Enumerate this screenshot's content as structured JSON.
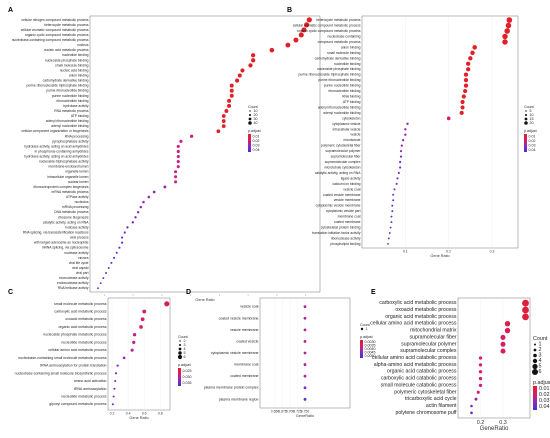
{
  "chart_data": [
    {
      "label": "A",
      "type": "scatter",
      "xlabel": "Gene Ratio",
      "ylabel": "",
      "xlim": [
        0.0,
        0.43
      ],
      "x_ticks": [
        "",
        "",
        "",
        "",
        "",
        "",
        "",
        ""
      ],
      "terms": [
        "cellular nitrogen compound metabolic process",
        "heterocycle metabolic process",
        "cellular aromatic compound metabolic process",
        "organic cyclic compound metabolic process",
        "nucleobase-containing compound metabolic process",
        "nucleus",
        "nucleic acid metabolic process",
        "nucleotide binding",
        "nucleoside phosphate binding",
        "small molecule binding",
        "nucleic acid binding",
        "anion binding",
        "carbohydrate derivative binding",
        "purine ribonucleoside triphosphate binding",
        "purine ribonucleotide binding",
        "purine nucleotide binding",
        "ribonucleotide binding",
        "hydrolase activity",
        "RNA metabolic process",
        "ATP binding",
        "adenyl ribonucleotide binding",
        "adenyl nucleotide binding",
        "cellular component organization or biogenesis",
        "RNA processing",
        "pyrophosphatase activity",
        "hydrolase activity, acting on acid anhydrides",
        "in phosphorus-containing anhydrides",
        "hydrolase activity, acting on acid anhydrides",
        "nucleoside-triphosphatase activity",
        "membrane-enclosed lumen",
        "organelle lumen",
        "intracellular organelle lumen",
        "nuclear lumen",
        "ribonucleoprotein complex biogenesis",
        "mRNA metabolic process",
        "ATPase activity",
        "nucleolus",
        "mRNA processing",
        "DNA metabolic process",
        "ribosome biogenesis",
        "catalytic activity, acting on RNA",
        "helicase activity",
        "RNA splicing, via transesterification reactions",
        "viral process",
        "with bulged adenosine as nucleophile",
        "mRNA splicing, via spliceosome",
        "nuclease activity",
        "viruses",
        "viral life cycle",
        "viral capsid",
        "viral part",
        "exonuclease activity",
        "endonuclease activity",
        "RNA helicase activity"
      ],
      "x": [
        0.41,
        0.405,
        0.4,
        0.395,
        0.385,
        0.37,
        0.34,
        0.305,
        0.305,
        0.3,
        0.285,
        0.28,
        0.275,
        0.265,
        0.265,
        0.265,
        0.26,
        0.26,
        0.255,
        0.25,
        0.25,
        0.25,
        0.24,
        0.19,
        0.17,
        0.165,
        0.165,
        0.165,
        0.165,
        0.165,
        0.16,
        0.16,
        0.16,
        0.14,
        0.12,
        0.11,
        0.1,
        0.095,
        0.09,
        0.085,
        0.08,
        0.07,
        0.065,
        0.06,
        0.06,
        0.055,
        0.05,
        0.045,
        0.04,
        0.035,
        0.03,
        0.025,
        0.02,
        0.015
      ],
      "padjust": [
        0.0,
        0.0,
        0.0,
        0.0,
        0.0,
        0.0,
        0.0,
        0.0,
        0.0,
        0.0,
        0.0,
        0.0,
        0.0,
        0.0,
        0.0,
        0.0,
        0.0,
        0.0,
        0.0,
        0.0,
        0.0,
        0.0,
        0.0,
        0.02,
        0.02,
        0.02,
        0.02,
        0.02,
        0.02,
        0.02,
        0.02,
        0.02,
        0.02,
        0.03,
        0.03,
        0.03,
        0.03,
        0.03,
        0.03,
        0.03,
        0.04,
        0.04,
        0.04,
        0.04,
        0.04,
        0.04,
        0.04,
        0.04,
        0.04,
        0.04,
        0.04,
        0.04,
        0.04,
        0.04
      ],
      "legend": {
        "count_title": "Count",
        "count_values": [
          10,
          20,
          30,
          40
        ],
        "padjust_title": "p.adjust",
        "padjust_labels": [
          "0.01",
          "0.02",
          "0.03",
          "0.04"
        ]
      }
    },
    {
      "label": "B",
      "type": "scatter",
      "xlabel": "Gene Ratio",
      "ylabel": "",
      "xlim": [
        0.0,
        0.36
      ],
      "x_ticks": [
        "0.1",
        "0.2",
        "0.3"
      ],
      "x_tick_values": [
        0.1,
        0.2,
        0.3
      ],
      "terms": [
        "heterocycle metabolic process",
        "cellular aromatic compound metabolic process",
        "organic cyclic compound metabolic process",
        "nucleobase-containing",
        "compound metabolic process",
        "anion binding",
        "small molecule binding",
        "carbohydrate derivative binding",
        "nucleotide binding",
        "nucleoside phosphate binding",
        "purine ribonucleoside triphosphate binding",
        "purine ribonucleotide binding",
        "purine nucleotide binding",
        "ribonucleotide binding",
        "RNA binding",
        "ATP binding",
        "adenyl ribonucleotide binding",
        "adenyl nucleotide binding",
        "cytoskeleton",
        "cytoplasmic vesicle",
        "intracellular vesicle",
        "vesicle",
        "microtubule",
        "polymeric cytoskeletal fiber",
        "supramolecular polymer",
        "supramolecular fiber",
        "supramolecular complex",
        "microtubule cytoskeleton",
        "catalytic activity, acting on RNA",
        "ligase activity",
        "calcium ion binding",
        "vesicle coat",
        "coated vesicle membrane",
        "vesicle membrane",
        "cytoplasmic vesicle membrane",
        "cytoplasmic vesicle part",
        "membrane coat",
        "coated membrane",
        "cytoskeletal protein binding",
        "translation initiation factor activity",
        "ribonuclease activity",
        "phospholipid binding"
      ],
      "x": [
        0.34,
        0.338,
        0.335,
        0.33,
        0.33,
        0.26,
        0.255,
        0.25,
        0.245,
        0.245,
        0.24,
        0.24,
        0.24,
        0.238,
        0.235,
        0.232,
        0.232,
        0.23,
        0.2,
        0.105,
        0.1,
        0.1,
        0.095,
        0.092,
        0.09,
        0.09,
        0.088,
        0.088,
        0.085,
        0.082,
        0.08,
        0.075,
        0.072,
        0.072,
        0.07,
        0.07,
        0.068,
        0.068,
        0.066,
        0.064,
        0.062,
        0.06
      ],
      "padjust": [
        0.0,
        0.0,
        0.0,
        0.0,
        0.0,
        0.0,
        0.0,
        0.0,
        0.0,
        0.0,
        0.0,
        0.0,
        0.0,
        0.0,
        0.0,
        0.0,
        0.0,
        0.0,
        0.015,
        0.03,
        0.03,
        0.03,
        0.03,
        0.03,
        0.03,
        0.035,
        0.035,
        0.035,
        0.035,
        0.04,
        0.04,
        0.04,
        0.04,
        0.04,
        0.04,
        0.04,
        0.04,
        0.04,
        0.04,
        0.04,
        0.04,
        0.04
      ],
      "legend": {
        "count_title": "Count",
        "count_values": [
          5,
          10,
          15,
          20
        ],
        "padjust_title": "p.adjust",
        "padjust_labels": [
          "0.01",
          "0.02",
          "0.03",
          "0.04"
        ]
      }
    },
    {
      "label": "C",
      "type": "scatter",
      "xlabel": "Gene Ratio",
      "ylabel": "",
      "xlim": [
        0.15,
        0.92
      ],
      "x_ticks": [
        "0.2",
        "0.4",
        "0.6",
        "0.8"
      ],
      "x_tick_values": [
        0.2,
        0.4,
        0.6,
        0.8
      ],
      "terms": [
        "small molecule metabolic process",
        "carboxylic acid metabolic process",
        "oxoacid metabolic process",
        "organic acid metabolic process",
        "nucleoside phosphate metabolic process",
        "nucleotide metabolic process",
        "cellular amino acid metabolic process",
        "nucleobase-containing small molecule metabolic process",
        "tRNA aminoacylation for protein translation",
        "nucleobase-containing small molecule biosynthetic process",
        "amino acid activation",
        "tRNA aminoacylation",
        "nucleotide metabolic process",
        "glyoxyl compound metabolic process"
      ],
      "x": [
        0.88,
        0.6,
        0.58,
        0.56,
        0.48,
        0.47,
        0.45,
        0.35,
        0.27,
        0.25,
        0.24,
        0.23,
        0.22,
        0.21
      ],
      "padjust": [
        0.01,
        0.012,
        0.013,
        0.014,
        0.02,
        0.02,
        0.021,
        0.025,
        0.03,
        0.03,
        0.03,
        0.03,
        0.03,
        0.03
      ],
      "legend": {
        "count_title": "Count",
        "count_values": [
          2,
          3,
          4,
          5,
          6
        ],
        "padjust_title": "p.adjust",
        "padjust_labels": [
          "0.025",
          "0.030",
          "0.035"
        ]
      }
    },
    {
      "label": "D",
      "type": "scatter",
      "xlabel": "GeneRatio",
      "ylabel": "",
      "xlim": [
        0.6,
        0.9
      ],
      "x_ticks": [
        "0.650",
        "0.675",
        "0.700",
        "0.725",
        "0.750"
      ],
      "x_tick_values": [
        0.65,
        0.675,
        0.7,
        0.725,
        0.75
      ],
      "terms": [
        "vesicle coat",
        "coated vesicle membrane",
        "vesicle membrane",
        "coated vesicle",
        "cytoplasmic vesicle membrane",
        "membrane coat",
        "coated membrane",
        "plasma membrane protein complex",
        "plasma membrane region"
      ],
      "x": [
        0.75,
        0.75,
        0.75,
        0.75,
        0.75,
        0.75,
        0.75,
        0.75,
        0.75
      ],
      "padjust": [
        0.003,
        0.003,
        0.003,
        0.003,
        0.003,
        0.003,
        0.003,
        0.004,
        0.005
      ],
      "legend": {
        "count_title": "Count",
        "count_values": [
          1
        ],
        "padjust_title": "p.adjust",
        "padjust_labels": [
          "0.0030",
          "0.0035",
          "0.0040",
          "0.0045",
          "0.0050"
        ]
      }
    },
    {
      "label": "E",
      "type": "scatter",
      "xlabel": "GeneRatio",
      "ylabel": "",
      "xlim": [
        0.1,
        0.42
      ],
      "x_ticks": [
        "0.2",
        "0.3"
      ],
      "x_tick_values": [
        0.2,
        0.3
      ],
      "terms": [
        "carboxylic acid metabolic process",
        "oxoacid metabolic process",
        "organic acid metabolic process",
        "cellular amino acid metabolic process",
        "mitochondrial matrix",
        "supramolecular fiber",
        "supramolecular polymer",
        "supramolecular complex",
        "cellular amino acid catabolic process",
        "alpha-amino acid metabolic process",
        "organic acid catabolic process",
        "carboxylic acid catabolic process",
        "small molecule catabolic process",
        "polymeric cytoskeletal fiber",
        "tricarboxylic acid cycle",
        "actin filament",
        "polytene chromosome puff"
      ],
      "x": [
        0.4,
        0.4,
        0.4,
        0.32,
        0.32,
        0.3,
        0.3,
        0.3,
        0.2,
        0.2,
        0.2,
        0.2,
        0.2,
        0.19,
        0.18,
        0.16,
        0.16
      ],
      "padjust": [
        0.005,
        0.005,
        0.005,
        0.008,
        0.01,
        0.012,
        0.012,
        0.012,
        0.015,
        0.015,
        0.016,
        0.016,
        0.018,
        0.02,
        0.03,
        0.035,
        0.04
      ],
      "legend": {
        "count_title": "Count",
        "count_values": [
          1,
          2,
          3,
          4,
          5,
          6
        ],
        "padjust_title": "p.adjust",
        "padjust_labels": [
          "0.01",
          "0.02",
          "0.03",
          "0.04"
        ]
      }
    }
  ]
}
